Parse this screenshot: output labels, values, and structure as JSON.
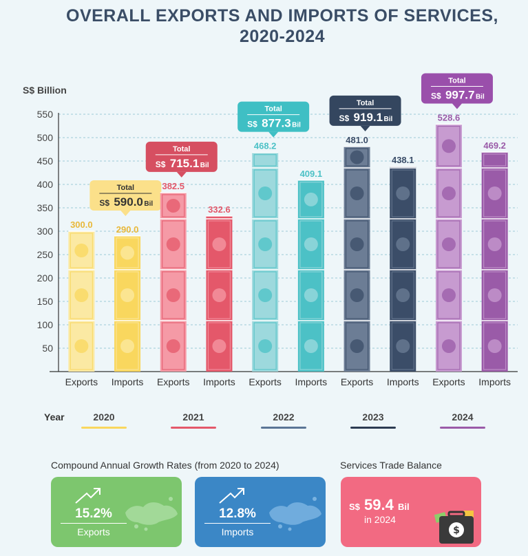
{
  "title_line1": "OVERALL EXPORTS AND IMPORTS OF SERVICES,",
  "title_line2": "2020-2024",
  "chart_data": {
    "type": "bar",
    "ylabel": "S$ Billion",
    "ylim": [
      0,
      550
    ],
    "yticks": [
      50,
      100,
      150,
      200,
      250,
      300,
      350,
      400,
      450,
      500,
      550
    ],
    "grid": true,
    "groups": [
      {
        "year": "2020",
        "color": "#f9d75e",
        "light": "#fbe9a3",
        "label_color": "#e8b83a",
        "exports": 300.0,
        "imports": 290.0,
        "exports_label": "300.0",
        "imports_label": "290.0",
        "total_word": "Total",
        "total_prefix": "S$",
        "total_value": "590.0",
        "total_unit": "Bil",
        "total_bg": "#fbe08a",
        "total_text": "#333333"
      },
      {
        "year": "2021",
        "color": "#e4586a",
        "light": "#f59aa6",
        "label_color": "#e4586a",
        "exports": 382.5,
        "imports": 332.6,
        "exports_label": "382.5",
        "imports_label": "332.6",
        "total_word": "Total",
        "total_prefix": "S$",
        "total_value": "715.1",
        "total_unit": "Bil",
        "total_bg": "#d64f61",
        "total_text": "#ffffff"
      },
      {
        "year": "2022",
        "color": "#4cc1c6",
        "light": "#9dd9dd",
        "label_color": "#4cc1c6",
        "exports": 468.2,
        "imports": 409.1,
        "exports_label": "468.2",
        "imports_label": "409.1",
        "total_word": "Total",
        "total_prefix": "S$",
        "total_value": "877.3",
        "total_unit": "Bil",
        "total_bg": "#3fbfc4",
        "total_text": "#ffffff"
      },
      {
        "year": "2023",
        "color": "#3b4d68",
        "light": "#6c7d95",
        "label_color": "#3b4d68",
        "exports": 481.0,
        "imports": 438.1,
        "exports_label": "481.0",
        "imports_label": "438.1",
        "total_word": "Total",
        "total_prefix": "S$",
        "total_value": "919.1",
        "total_unit": "Bil",
        "total_bg": "#34465f",
        "total_text": "#ffffff"
      },
      {
        "year": "2024",
        "color": "#9a5ba8",
        "light": "#c79bd0",
        "label_color": "#9a5ba8",
        "exports": 528.6,
        "imports": 469.2,
        "exports_label": "528.6",
        "imports_label": "469.2",
        "total_word": "Total",
        "total_prefix": "S$",
        "total_value": "997.7",
        "total_unit": "Bil",
        "total_bg": "#9a4fab",
        "total_text": "#ffffff"
      }
    ],
    "category_labels": [
      "Exports",
      "Imports"
    ]
  },
  "legend": {
    "year_label": "Year",
    "items": [
      {
        "year": "2020",
        "color": "#f9d75e"
      },
      {
        "year": "2021",
        "color": "#e4586a"
      },
      {
        "year": "2022",
        "color": "#5a7596"
      },
      {
        "year": "2023",
        "color": "#2c3b52"
      },
      {
        "year": "2024",
        "color": "#9a5ba8"
      }
    ]
  },
  "cagr": {
    "title": "Compound Annual Growth Rates (from 2020 to 2024)",
    "exports_value": "15.2%",
    "exports_label": "Exports",
    "imports_value": "12.8%",
    "imports_label": "Imports"
  },
  "trade_balance": {
    "title": "Services Trade Balance",
    "prefix": "S$",
    "value": "59.4",
    "unit": "Bil",
    "year_text": "in 2024"
  },
  "colors": {
    "green_card": "#7dc66e",
    "blue_card": "#3b87c6",
    "pink_card": "#f26a82",
    "title": "#3a4d66"
  }
}
